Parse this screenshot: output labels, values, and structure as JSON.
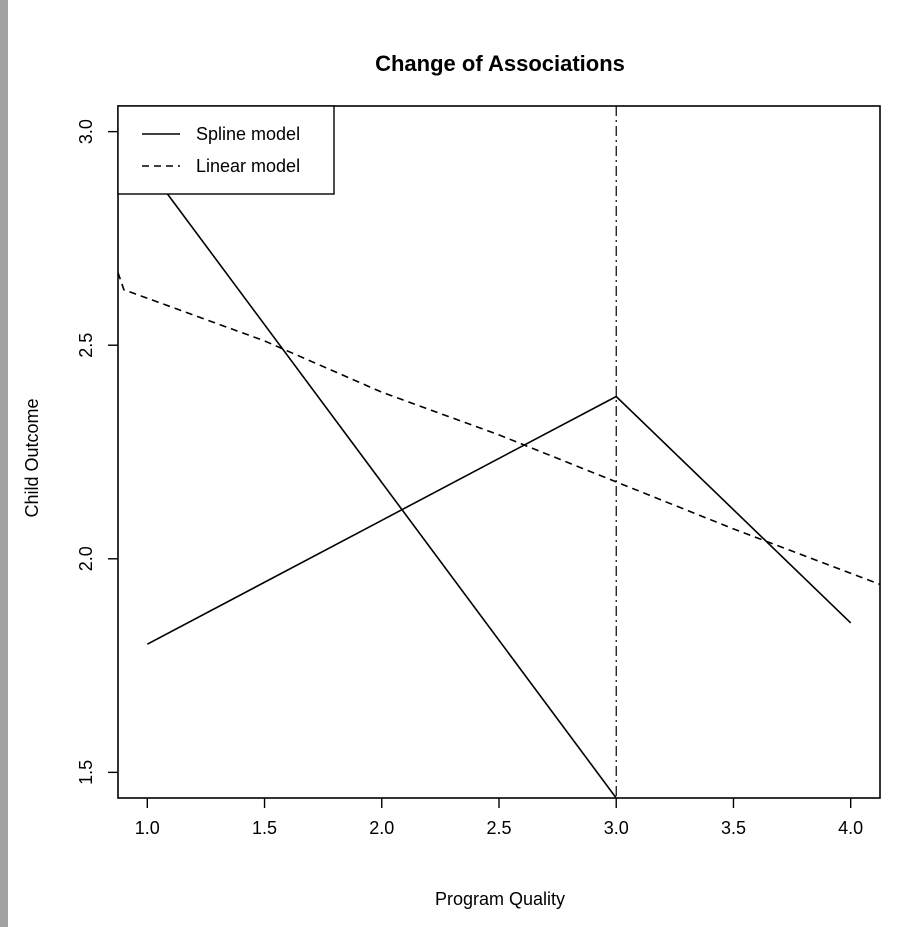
{
  "chart_data": {
    "type": "line",
    "title": "Change of Associations",
    "xlabel": "Program Quality",
    "ylabel": "Child Outcome",
    "xlim": [
      0.875,
      4.125
    ],
    "ylim": [
      1.44,
      3.06
    ],
    "xticks": [
      "1.0",
      "1.5",
      "2.0",
      "2.5",
      "3.0",
      "3.5",
      "4.0"
    ],
    "yticks": [
      "1.5",
      "2.0",
      "2.5",
      "3.0"
    ],
    "legend_position": "top-left",
    "grid": false,
    "series": [
      {
        "name": "Spline model",
        "style": "solid",
        "segments": [
          {
            "x": [
              1.0,
              3.0,
              4.0
            ],
            "y": [
              1.8,
              2.38,
              1.85
            ]
          },
          {
            "x": [
              0.875,
              3.0
            ],
            "y": [
              3.01,
              1.44
            ]
          }
        ]
      },
      {
        "name": "Linear model",
        "style": "dashed",
        "segments": [
          {
            "x": [
              0.875,
              0.9,
              1.5,
              2.0,
              2.5,
              3.0,
              3.5,
              4.125
            ],
            "y": [
              2.67,
              2.63,
              2.51,
              2.39,
              2.29,
              2.18,
              2.07,
              1.94
            ]
          }
        ]
      }
    ],
    "annotations": [
      {
        "type": "vline",
        "x": 3.0,
        "style": "dotdash"
      }
    ]
  }
}
